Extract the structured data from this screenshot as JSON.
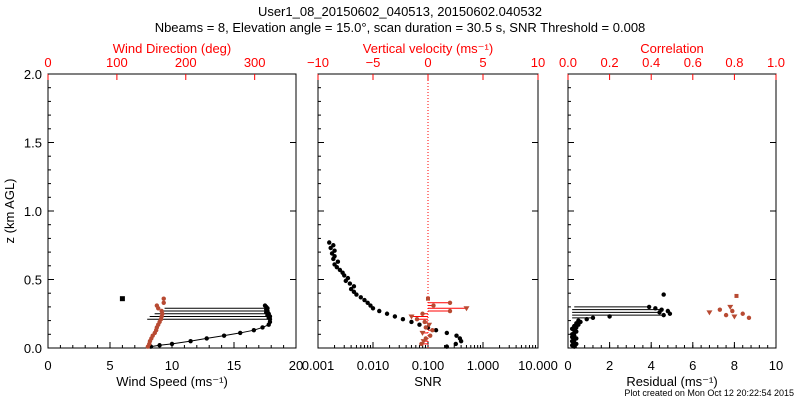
{
  "header": {
    "title": "User1_08_20150602_040513, 20150602.040532",
    "subtitle": "Nbeams = 8, Elevation angle = 15.0°, scan duration = 30.5 s, SNR Threshold = 0.008"
  },
  "footer": {
    "stamp": "Plot created on Mon Oct 12 20:22:54 2015"
  },
  "colors": {
    "axis": "#000000",
    "secondary": "#ff0000",
    "marker_red": "#b84a32",
    "marker_black": "#000000"
  },
  "chart_data": [
    {
      "type": "line",
      "ylabel": "z (km AGL)",
      "ylim": [
        0,
        2.0
      ],
      "yticks": [
        0.0,
        0.5,
        1.0,
        1.5,
        2.0
      ],
      "ytick_labels": [
        "0.0",
        "0.5",
        "1.0",
        "1.5",
        "2.0"
      ],
      "xlabel": "Wind Speed (ms⁻¹)",
      "xlim": [
        0,
        20
      ],
      "xticks": [
        0,
        5,
        10,
        15,
        20
      ],
      "xtick_labels": [
        "0",
        "5",
        "10",
        "15",
        "20"
      ],
      "top_label": "Wind Direction (deg)",
      "top_lim": [
        0,
        360
      ],
      "top_ticks": [
        0,
        100,
        200,
        300
      ],
      "top_tick_labels": [
        "0",
        "100",
        "200",
        "300"
      ],
      "series": [
        {
          "name": "Wind Speed",
          "axis": "bottom",
          "color": "#000000",
          "z": [
            0.01,
            0.02,
            0.03,
            0.05,
            0.07,
            0.09,
            0.11,
            0.13,
            0.15,
            0.17,
            0.19,
            0.21,
            0.22,
            0.23,
            0.24,
            0.25,
            0.26,
            0.27,
            0.28,
            0.29,
            0.3,
            0.31
          ],
          "x": [
            8.3,
            9.0,
            10.0,
            11.5,
            12.8,
            14.2,
            15.5,
            16.6,
            17.3,
            17.8,
            17.9,
            17.9,
            17.8,
            17.9,
            17.7,
            17.8,
            17.6,
            17.7,
            17.6,
            17.7,
            17.6,
            17.5
          ]
        },
        {
          "name": "Wind Direction",
          "axis": "top",
          "color": "#b84a32",
          "z": [
            0.01,
            0.03,
            0.05,
            0.07,
            0.09,
            0.11,
            0.13,
            0.15,
            0.17,
            0.19,
            0.21,
            0.23,
            0.25,
            0.27,
            0.29,
            0.31,
            0.33,
            0.36
          ],
          "x": [
            145,
            147,
            148,
            150,
            152,
            155,
            157,
            158,
            160,
            162,
            164,
            165,
            166,
            165,
            160,
            158,
            168,
            168
          ]
        }
      ],
      "outliers": [
        {
          "z": 0.36,
          "x": 6.0,
          "axis": "bottom",
          "marker": "square"
        }
      ],
      "branch_lines": [
        {
          "z": 0.29,
          "x_from": 9.4,
          "x_to": 17.6
        },
        {
          "z": 0.27,
          "x_from": 9.0,
          "x_to": 17.8
        },
        {
          "z": 0.25,
          "x_from": 8.6,
          "x_to": 17.7
        },
        {
          "z": 0.23,
          "x_from": 8.2,
          "x_to": 17.9
        },
        {
          "z": 0.21,
          "x_from": 8.0,
          "x_to": 17.9
        }
      ]
    },
    {
      "type": "scatter",
      "xscale": "log",
      "xlabel": "SNR",
      "xlim": [
        0.001,
        10.0
      ],
      "xticks": [
        0.001,
        0.01,
        0.1,
        1.0,
        10.0
      ],
      "xtick_labels": [
        "0.001",
        "0.010",
        "0.100",
        "1.000",
        "10.000"
      ],
      "top_label": "Vertical velocity (ms⁻¹)",
      "top_lim": [
        -10,
        10
      ],
      "top_ticks": [
        -10,
        -5,
        0,
        5,
        10
      ],
      "top_tick_labels": [
        "−10",
        "−5",
        "0",
        "5",
        "10"
      ],
      "ylim": [
        0,
        2.0
      ],
      "threshold_line": {
        "axis": "top",
        "value": 0,
        "style": "dotted"
      },
      "series": [
        {
          "name": "SNR",
          "axis": "bottom",
          "color": "#000000",
          "z": [
            0.01,
            0.03,
            0.05,
            0.07,
            0.09,
            0.11,
            0.13,
            0.15,
            0.17,
            0.19,
            0.21,
            0.23,
            0.25,
            0.27,
            0.29,
            0.31,
            0.33,
            0.35,
            0.37,
            0.39,
            0.41,
            0.43,
            0.45,
            0.47,
            0.49,
            0.51,
            0.53,
            0.55,
            0.57,
            0.59,
            0.61,
            0.63,
            0.65,
            0.67,
            0.69,
            0.71,
            0.73,
            0.75,
            0.77
          ],
          "x": [
            0.22,
            0.32,
            0.4,
            0.38,
            0.33,
            0.22,
            0.14,
            0.1,
            0.07,
            0.05,
            0.035,
            0.025,
            0.018,
            0.013,
            0.01,
            0.009,
            0.008,
            0.007,
            0.006,
            0.005,
            0.0045,
            0.004,
            0.0045,
            0.0038,
            0.0032,
            0.0035,
            0.003,
            0.0028,
            0.0025,
            0.0022,
            0.002,
            0.0023,
            0.0019,
            0.002,
            0.0018,
            0.002,
            0.0017,
            0.0019,
            0.0016
          ]
        },
        {
          "name": "Vertical velocity",
          "axis": "top",
          "color": "#b84a32",
          "z": [
            0.03,
            0.05,
            0.07,
            0.09,
            0.11,
            0.13,
            0.15,
            0.17,
            0.19,
            0.21,
            0.23,
            0.25,
            0.27,
            0.29,
            0.31,
            0.33,
            0.36
          ],
          "x": [
            -0.6,
            -0.4,
            -0.2,
            0.2,
            -0.5,
            0.4,
            -0.2,
            0.1,
            -0.3,
            -1.0,
            -1.5,
            -0.5,
            2.0,
            3.5,
            0.5,
            2.0,
            0.0
          ]
        }
      ]
    },
    {
      "type": "scatter",
      "xlabel": "Residual (ms⁻¹)",
      "xlim": [
        0,
        10
      ],
      "xticks": [
        0,
        2,
        4,
        6,
        8,
        10
      ],
      "xtick_labels": [
        "0",
        "2",
        "4",
        "6",
        "8",
        "10"
      ],
      "top_label": "Correlation",
      "top_lim": [
        0.0,
        1.0
      ],
      "top_ticks": [
        0.0,
        0.2,
        0.4,
        0.6,
        0.8,
        1.0
      ],
      "top_tick_labels": [
        "0.0",
        "0.2",
        "0.4",
        "0.6",
        "0.8",
        "1.0"
      ],
      "ylim": [
        0,
        2.0
      ],
      "series": [
        {
          "name": "Residual",
          "axis": "bottom",
          "color": "#000000",
          "z": [
            0.01,
            0.02,
            0.03,
            0.04,
            0.05,
            0.06,
            0.07,
            0.08,
            0.09,
            0.1,
            0.11,
            0.12,
            0.13,
            0.14,
            0.15,
            0.16,
            0.17,
            0.18,
            0.19,
            0.2,
            0.21,
            0.22,
            0.23,
            0.24,
            0.25,
            0.26,
            0.27,
            0.28,
            0.29,
            0.3,
            0.39
          ],
          "x": [
            0.3,
            0.2,
            0.4,
            0.3,
            0.2,
            0.3,
            0.4,
            0.2,
            0.3,
            0.2,
            0.3,
            0.4,
            0.3,
            0.2,
            0.4,
            0.3,
            0.5,
            0.4,
            0.6,
            0.5,
            0.9,
            1.2,
            2.0,
            4.6,
            4.9,
            4.4,
            4.8,
            4.5,
            4.2,
            3.9,
            4.6
          ]
        },
        {
          "name": "Correlation",
          "axis": "top",
          "color": "#b84a32",
          "z": [
            0.22,
            0.23,
            0.24,
            0.25,
            0.26,
            0.27,
            0.28,
            0.3,
            0.38
          ],
          "x": [
            0.87,
            0.8,
            0.76,
            0.84,
            0.68,
            0.79,
            0.73,
            0.78,
            0.81
          ]
        }
      ],
      "branch_lines": [
        {
          "z": 0.3,
          "x_from": 0.3,
          "x_to": 3.9
        },
        {
          "z": 0.28,
          "x_from": 0.2,
          "x_to": 4.5
        },
        {
          "z": 0.26,
          "x_from": 0.2,
          "x_to": 4.4
        },
        {
          "z": 0.24,
          "x_from": 0.2,
          "x_to": 4.6
        },
        {
          "z": 0.22,
          "x_from": 0.2,
          "x_to": 1.2
        }
      ]
    }
  ]
}
